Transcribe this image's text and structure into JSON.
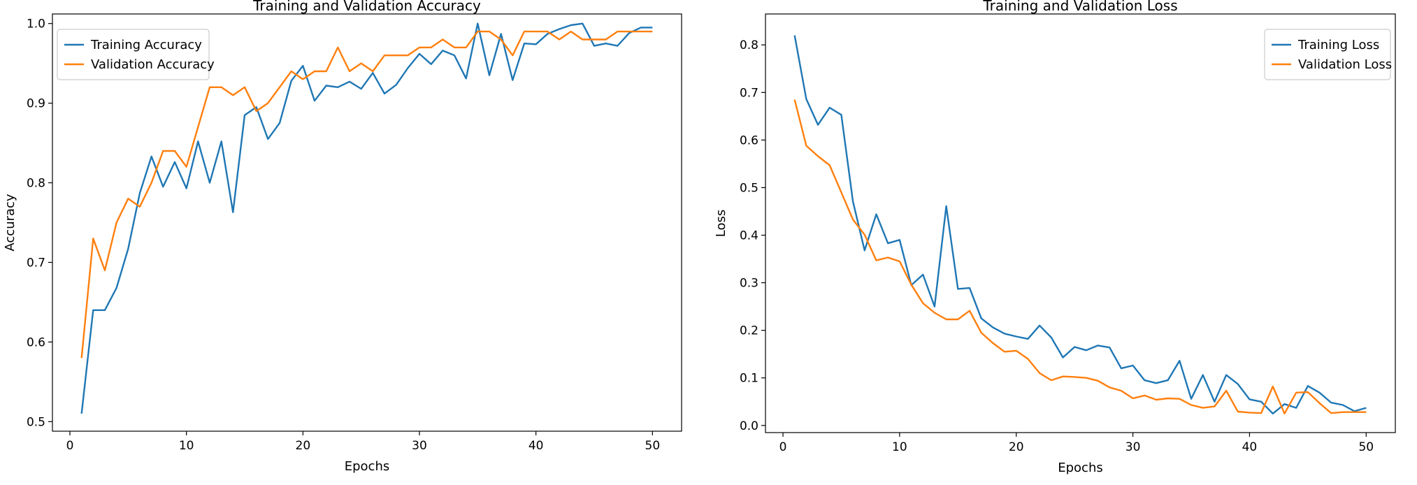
{
  "chart_data": [
    {
      "type": "line",
      "title": "Training and Validation Accuracy",
      "xlabel": "Epochs",
      "ylabel": "Accuracy",
      "xlim": [
        -1.5,
        52.5
      ],
      "ylim": [
        0.488,
        1.012
      ],
      "xticks": [
        0,
        10,
        20,
        30,
        40,
        50
      ],
      "yticks": [
        0.5,
        0.6,
        0.7,
        0.8,
        0.9,
        1.0
      ],
      "ytick_labels": [
        "0.5",
        "0.6",
        "0.7",
        "0.8",
        "0.9",
        "1.0"
      ],
      "grid": false,
      "legend_position": "top-left",
      "x": [
        1,
        2,
        3,
        4,
        5,
        6,
        7,
        8,
        9,
        10,
        11,
        12,
        13,
        14,
        15,
        16,
        17,
        18,
        19,
        20,
        21,
        22,
        23,
        24,
        25,
        26,
        27,
        28,
        29,
        30,
        31,
        32,
        33,
        34,
        35,
        36,
        37,
        38,
        39,
        40,
        41,
        42,
        43,
        44,
        45,
        46,
        47,
        48,
        49,
        50
      ],
      "series": [
        {
          "name": "Training Accuracy",
          "color": "#1f77b4",
          "values": [
            0.51,
            0.64,
            0.64,
            0.668,
            0.717,
            0.787,
            0.833,
            0.795,
            0.826,
            0.793,
            0.852,
            0.8,
            0.852,
            0.763,
            0.885,
            0.895,
            0.855,
            0.875,
            0.928,
            0.947,
            0.903,
            0.922,
            0.92,
            0.927,
            0.918,
            0.938,
            0.912,
            0.923,
            0.944,
            0.962,
            0.949,
            0.966,
            0.96,
            0.931,
            1.0,
            0.935,
            0.987,
            0.929,
            0.975,
            0.974,
            0.987,
            0.993,
            0.998,
            1.0,
            0.972,
            0.975,
            0.972,
            0.988,
            0.995,
            0.995
          ]
        },
        {
          "name": "Validation Accuracy",
          "color": "#ff7f0e",
          "values": [
            0.58,
            0.73,
            0.69,
            0.75,
            0.78,
            0.77,
            0.8,
            0.84,
            0.84,
            0.82,
            0.87,
            0.92,
            0.92,
            0.91,
            0.92,
            0.89,
            0.9,
            0.92,
            0.94,
            0.93,
            0.94,
            0.94,
            0.97,
            0.94,
            0.95,
            0.94,
            0.96,
            0.96,
            0.96,
            0.97,
            0.97,
            0.98,
            0.97,
            0.97,
            0.99,
            0.99,
            0.98,
            0.96,
            0.99,
            0.99,
            0.99,
            0.98,
            0.99,
            0.98,
            0.98,
            0.98,
            0.99,
            0.99,
            0.99,
            0.99
          ]
        }
      ]
    },
    {
      "type": "line",
      "title": "Training and Validation Loss",
      "xlabel": "Epochs",
      "ylabel": "Loss",
      "xlim": [
        -1.5,
        52.5
      ],
      "ylim": [
        -0.015,
        0.865
      ],
      "xticks": [
        0,
        10,
        20,
        30,
        40,
        50
      ],
      "yticks": [
        0.0,
        0.1,
        0.2,
        0.3,
        0.4,
        0.5,
        0.6,
        0.7,
        0.8
      ],
      "ytick_labels": [
        "0.0",
        "0.1",
        "0.2",
        "0.3",
        "0.4",
        "0.5",
        "0.6",
        "0.7",
        "0.8"
      ],
      "grid": false,
      "legend_position": "top-right",
      "x": [
        1,
        2,
        3,
        4,
        5,
        6,
        7,
        8,
        9,
        10,
        11,
        12,
        13,
        14,
        15,
        16,
        17,
        18,
        19,
        20,
        21,
        22,
        23,
        24,
        25,
        26,
        27,
        28,
        29,
        30,
        31,
        32,
        33,
        34,
        35,
        36,
        37,
        38,
        39,
        40,
        41,
        42,
        43,
        44,
        45,
        46,
        47,
        48,
        49,
        50
      ],
      "series": [
        {
          "name": "Training Loss",
          "color": "#1f77b4",
          "values": [
            0.82,
            0.686,
            0.632,
            0.668,
            0.653,
            0.471,
            0.368,
            0.444,
            0.383,
            0.39,
            0.295,
            0.317,
            0.25,
            0.461,
            0.287,
            0.289,
            0.225,
            0.206,
            0.193,
            0.187,
            0.182,
            0.21,
            0.185,
            0.143,
            0.165,
            0.158,
            0.168,
            0.164,
            0.12,
            0.126,
            0.095,
            0.089,
            0.095,
            0.136,
            0.056,
            0.106,
            0.05,
            0.106,
            0.087,
            0.055,
            0.05,
            0.025,
            0.045,
            0.037,
            0.083,
            0.069,
            0.048,
            0.043,
            0.03,
            0.037
          ]
        },
        {
          "name": "Validation Loss",
          "color": "#ff7f0e",
          "values": [
            0.685,
            0.588,
            0.566,
            0.547,
            0.49,
            0.433,
            0.401,
            0.347,
            0.353,
            0.345,
            0.296,
            0.257,
            0.237,
            0.223,
            0.223,
            0.241,
            0.195,
            0.173,
            0.155,
            0.157,
            0.14,
            0.11,
            0.095,
            0.103,
            0.102,
            0.1,
            0.094,
            0.08,
            0.073,
            0.057,
            0.063,
            0.054,
            0.057,
            0.056,
            0.043,
            0.037,
            0.04,
            0.073,
            0.029,
            0.027,
            0.026,
            0.082,
            0.025,
            0.069,
            0.07,
            0.047,
            0.026,
            0.028,
            0.028,
            0.028
          ]
        }
      ]
    }
  ]
}
